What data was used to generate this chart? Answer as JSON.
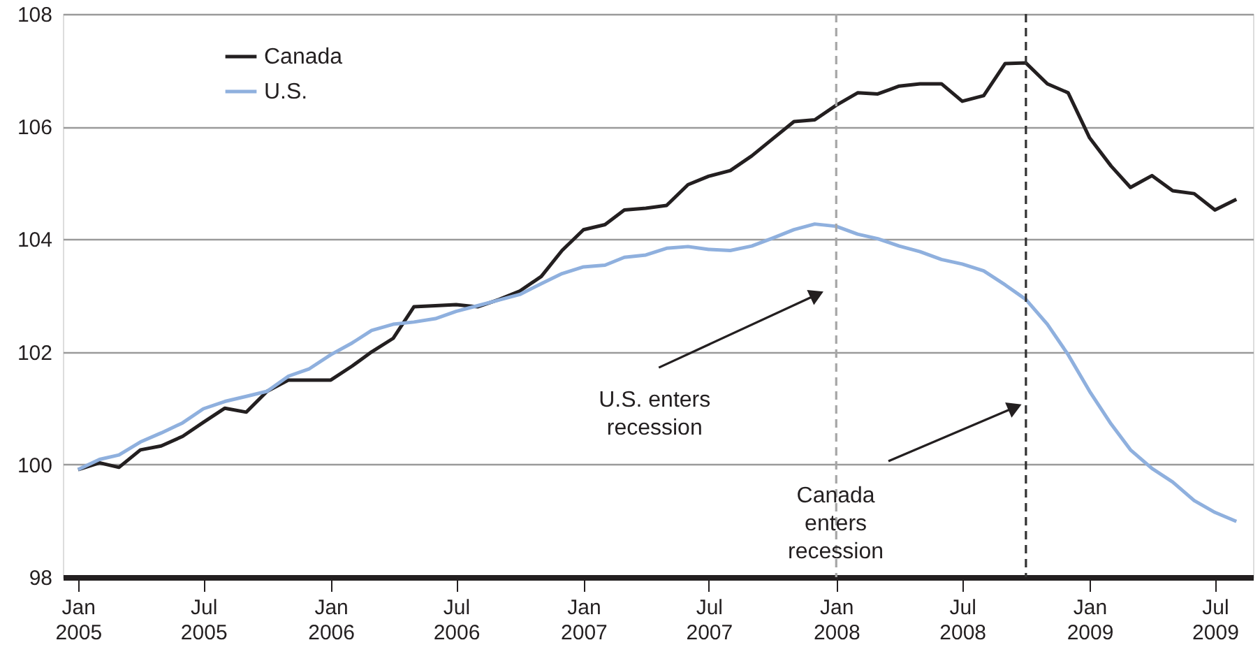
{
  "chart_data": {
    "type": "line",
    "x": [
      "2005-01",
      "2005-02",
      "2005-03",
      "2005-04",
      "2005-05",
      "2005-06",
      "2005-07",
      "2005-08",
      "2005-09",
      "2005-10",
      "2005-11",
      "2005-12",
      "2006-01",
      "2006-02",
      "2006-03",
      "2006-04",
      "2006-05",
      "2006-06",
      "2006-07",
      "2006-08",
      "2006-09",
      "2006-10",
      "2006-11",
      "2006-12",
      "2007-01",
      "2007-02",
      "2007-03",
      "2007-04",
      "2007-05",
      "2007-06",
      "2007-07",
      "2007-08",
      "2007-09",
      "2007-10",
      "2007-11",
      "2007-12",
      "2008-01",
      "2008-02",
      "2008-03",
      "2008-04",
      "2008-05",
      "2008-06",
      "2008-07",
      "2008-08",
      "2008-09",
      "2008-10",
      "2008-11",
      "2008-12",
      "2009-01",
      "2009-02",
      "2009-03",
      "2009-04",
      "2009-05",
      "2009-06",
      "2009-07",
      "2009-08"
    ],
    "series": [
      {
        "name": "Canada",
        "color": "#231f20",
        "values": [
          99.91,
          100.03,
          99.95,
          100.26,
          100.33,
          100.5,
          100.75,
          101.0,
          100.93,
          101.3,
          101.5,
          101.5,
          101.5,
          101.75,
          102.0,
          102.24,
          102.8,
          102.82,
          102.84,
          102.8,
          102.93,
          103.08,
          103.34,
          103.8,
          104.17,
          104.26,
          104.52,
          104.55,
          104.6,
          104.97,
          105.12,
          105.22,
          105.48,
          105.78,
          106.09,
          106.12,
          106.38,
          106.6,
          106.58,
          106.72,
          106.76,
          106.76,
          106.45,
          106.55,
          107.12,
          107.13,
          106.76,
          106.6,
          105.8,
          105.3,
          104.92,
          105.13,
          104.86,
          104.81,
          104.52,
          104.71
        ]
      },
      {
        "name": "U.S.",
        "color": "#8fb0de",
        "values": [
          99.91,
          100.09,
          100.17,
          100.4,
          100.56,
          100.74,
          100.99,
          101.12,
          101.21,
          101.3,
          101.57,
          101.7,
          101.95,
          102.16,
          102.38,
          102.49,
          102.53,
          102.59,
          102.72,
          102.82,
          102.92,
          103.02,
          103.21,
          103.39,
          103.51,
          103.54,
          103.68,
          103.72,
          103.84,
          103.87,
          103.82,
          103.8,
          103.88,
          104.02,
          104.17,
          104.27,
          104.23,
          104.09,
          104.01,
          103.88,
          103.78,
          103.64,
          103.56,
          103.44,
          103.19,
          102.93,
          102.49,
          101.95,
          101.3,
          100.72,
          100.26,
          99.93,
          99.69,
          99.36,
          99.15,
          98.99
        ]
      }
    ],
    "xlim": [
      "2004-12-10",
      "2009-08-25"
    ],
    "xticks": [
      {
        "value": "2005-01",
        "label": "Jan 2005"
      },
      {
        "value": "2005-07",
        "label": "Jul 2005"
      },
      {
        "value": "2006-01",
        "label": "Jan 2006"
      },
      {
        "value": "2006-07",
        "label": "Jul 2006"
      },
      {
        "value": "2007-01",
        "label": "Jan 2007"
      },
      {
        "value": "2007-07",
        "label": "Jul 2007"
      },
      {
        "value": "2008-01",
        "label": "Jan 2008"
      },
      {
        "value": "2008-07",
        "label": "Jul 2008"
      },
      {
        "value": "2009-01",
        "label": "Jan 2009"
      },
      {
        "value": "2009-07",
        "label": "Jul 2009"
      }
    ],
    "ylim": [
      98,
      108
    ],
    "yticks": [
      98,
      100,
      102,
      104,
      106,
      108
    ],
    "ref_lines": [
      {
        "axis": "x",
        "value": "2008-01",
        "color": "#a6a6a6",
        "line_style": "dashed"
      },
      {
        "axis": "x",
        "value": "2008-10",
        "color": "#333333",
        "line_style": "dashed"
      }
    ],
    "annotations": [
      {
        "text": "U.S. enters recession",
        "x": "2007-12-01",
        "y": 103.0
      },
      {
        "text": "Canada enters recession",
        "x": "2008-09-12",
        "y": 101.0
      }
    ],
    "grid": "y",
    "legend": "top left",
    "line_style": "solid"
  }
}
